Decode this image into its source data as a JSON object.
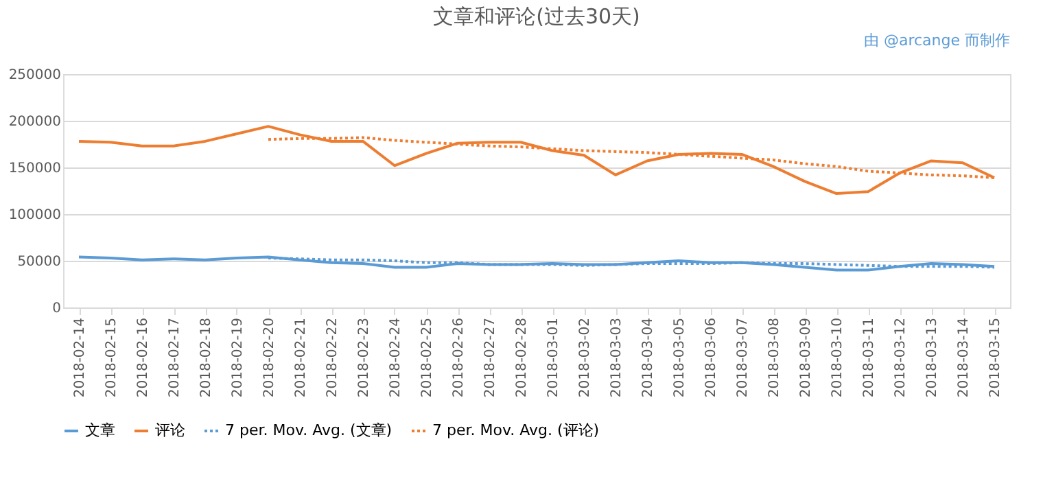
{
  "chart_data": {
    "type": "line",
    "title": "文章和评论(过去30天)",
    "annotations": [
      "由 @arcange 而制作"
    ],
    "categories": [
      "2018-02-14",
      "2018-02-15",
      "2018-02-16",
      "2018-02-17",
      "2018-02-18",
      "2018-02-19",
      "2018-02-20",
      "2018-02-21",
      "2018-02-22",
      "2018-02-23",
      "2018-02-24",
      "2018-02-25",
      "2018-02-26",
      "2018-02-27",
      "2018-02-28",
      "2018-03-01",
      "2018-03-02",
      "2018-03-03",
      "2018-03-04",
      "2018-03-05",
      "2018-03-06",
      "2018-03-07",
      "2018-03-08",
      "2018-03-09",
      "2018-03-10",
      "2018-03-11",
      "2018-03-12",
      "2018-03-13",
      "2018-03-14",
      "2018-03-15"
    ],
    "series": [
      {
        "name": "文章",
        "color": "#5b9bd5",
        "line_style": "solid",
        "values": [
          54000,
          53000,
          51000,
          52000,
          51000,
          53000,
          54000,
          51000,
          48000,
          47000,
          43000,
          43000,
          47000,
          46000,
          46000,
          47000,
          46000,
          46000,
          48000,
          50000,
          48000,
          48000,
          46000,
          43000,
          40000,
          40000,
          44000,
          47000,
          46000,
          44000
        ]
      },
      {
        "name": "评论",
        "color": "#ed7d31",
        "line_style": "solid",
        "values": [
          178000,
          177000,
          173000,
          173000,
          178000,
          186000,
          194000,
          185000,
          178000,
          178000,
          152000,
          165000,
          176000,
          177000,
          177000,
          168000,
          163000,
          142000,
          157000,
          164000,
          165000,
          164000,
          151000,
          135000,
          122000,
          124000,
          144000,
          157000,
          155000,
          139000
        ]
      },
      {
        "name": "7 per. Mov. Avg. (文章)",
        "color": "#5b9bd5",
        "line_style": "dotted",
        "values": [
          null,
          null,
          null,
          null,
          null,
          null,
          53000,
          52000,
          51000,
          51000,
          50000,
          48000,
          48000,
          46000,
          46000,
          46000,
          45000,
          46000,
          47000,
          47000,
          47000,
          48000,
          47000,
          47000,
          46000,
          45000,
          44000,
          44000,
          44000,
          43000
        ]
      },
      {
        "name": "7 per. Mov. Avg. (评论)",
        "color": "#ed7d31",
        "line_style": "dotted",
        "values": [
          null,
          null,
          null,
          null,
          null,
          null,
          180000,
          181000,
          181000,
          182000,
          179000,
          177000,
          175000,
          173000,
          172000,
          170000,
          168000,
          167000,
          166000,
          164000,
          162000,
          160000,
          158000,
          154000,
          151000,
          146000,
          144000,
          142000,
          141000,
          139000
        ]
      }
    ],
    "ylim": [
      0,
      250000
    ],
    "yticks": [
      0,
      50000,
      100000,
      150000,
      200000,
      250000
    ],
    "grid": "y",
    "legend": "bottom"
  }
}
